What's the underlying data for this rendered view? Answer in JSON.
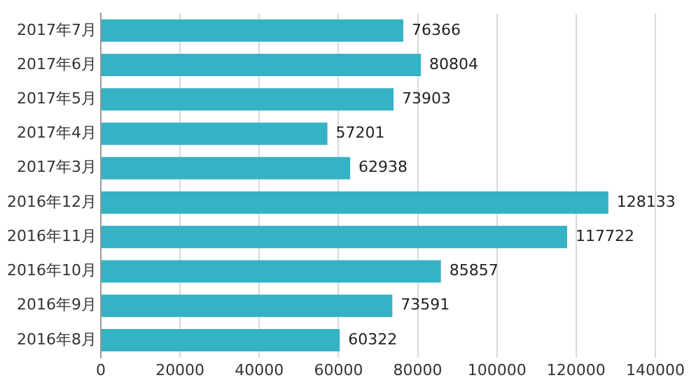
{
  "chart_data": {
    "type": "bar",
    "orientation": "horizontal",
    "categories": [
      "2017年7月",
      "2017年6月",
      "2017年5月",
      "2017年4月",
      "2017年3月",
      "2016年12月",
      "2016年11月",
      "2016年10月",
      "2016年9月",
      "2016年8月"
    ],
    "values": [
      76366,
      80804,
      73903,
      57201,
      62938,
      128133,
      117722,
      85857,
      73591,
      60322
    ],
    "color": "#35b2c4",
    "xlim": [
      0,
      140000
    ],
    "xticks": [
      0,
      20000,
      40000,
      60000,
      80000,
      100000,
      120000,
      140000
    ],
    "grid": "x",
    "data_labels": true
  }
}
